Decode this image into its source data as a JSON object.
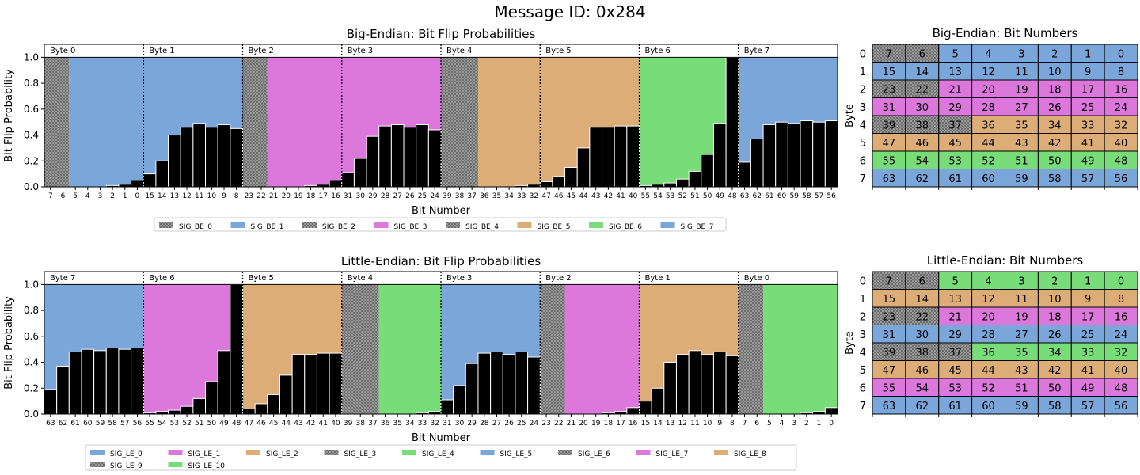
{
  "title": "Message ID: 0x284",
  "colors": {
    "blue": "#7aa6da",
    "pink": "#dc78dc",
    "tan": "#ddad78",
    "green": "#78dc78",
    "gray": "#9a9a9a",
    "bar": "#000000"
  },
  "chart_data": [
    {
      "type": "bar",
      "title": "Big-Endian: Bit Flip Probabilities",
      "xlabel": "Bit Number",
      "ylabel": "Bit Flip Probability",
      "ylim": [
        0,
        1.1
      ],
      "yticks": [
        "0.0",
        "0.2",
        "0.4",
        "0.6",
        "0.8",
        "1.0"
      ],
      "bytes": [
        "Byte 0",
        "Byte 1",
        "Byte 2",
        "Byte 3",
        "Byte 4",
        "Byte 5",
        "Byte 6",
        "Byte 7"
      ],
      "categories": [
        "7",
        "6",
        "5",
        "4",
        "3",
        "2",
        "1",
        "0",
        "15",
        "14",
        "13",
        "12",
        "11",
        "10",
        "9",
        "8",
        "23",
        "22",
        "21",
        "20",
        "19",
        "18",
        "17",
        "16",
        "31",
        "30",
        "29",
        "28",
        "27",
        "26",
        "25",
        "24",
        "39",
        "38",
        "37",
        "36",
        "35",
        "34",
        "33",
        "32",
        "47",
        "46",
        "45",
        "44",
        "43",
        "42",
        "41",
        "40",
        "55",
        "54",
        "53",
        "52",
        "51",
        "50",
        "49",
        "48",
        "63",
        "62",
        "61",
        "60",
        "59",
        "58",
        "57",
        "56"
      ],
      "values": [
        0,
        0,
        0,
        0,
        0,
        0.01,
        0.02,
        0.05,
        0.1,
        0.2,
        0.4,
        0.46,
        0.49,
        0.46,
        0.48,
        0.45,
        0,
        0,
        0,
        0,
        0,
        0.01,
        0.02,
        0.05,
        0.11,
        0.22,
        0.39,
        0.47,
        0.48,
        0.46,
        0.48,
        0.44,
        0,
        0,
        0,
        0,
        0,
        0,
        0.01,
        0.02,
        0.04,
        0.08,
        0.15,
        0.3,
        0.46,
        0.46,
        0.47,
        0.47,
        0.01,
        0.02,
        0.03,
        0.06,
        0.12,
        0.25,
        0.49,
        1.0,
        0.19,
        0.37,
        0.48,
        0.5,
        0.49,
        0.51,
        0.5,
        0.51
      ],
      "signals": [
        {
          "name": "SIG_BE_0",
          "color": "gray",
          "patterned": true,
          "start": 0,
          "len": 2
        },
        {
          "name": "SIG_BE_1",
          "color": "blue",
          "patterned": false,
          "start": 2,
          "len": 14
        },
        {
          "name": "SIG_BE_2",
          "color": "gray",
          "patterned": true,
          "start": 16,
          "len": 2
        },
        {
          "name": "SIG_BE_3",
          "color": "pink",
          "patterned": false,
          "start": 18,
          "len": 14
        },
        {
          "name": "SIG_BE_4",
          "color": "gray",
          "patterned": true,
          "start": 32,
          "len": 3
        },
        {
          "name": "SIG_BE_5",
          "color": "tan",
          "patterned": false,
          "start": 35,
          "len": 13
        },
        {
          "name": "SIG_BE_6",
          "color": "green",
          "patterned": false,
          "start": 48,
          "len": 8
        },
        {
          "name": "SIG_BE_7",
          "color": "blue",
          "patterned": false,
          "start": 56,
          "len": 8
        }
      ]
    },
    {
      "type": "bar",
      "title": "Little-Endian: Bit Flip Probabilities",
      "xlabel": "Bit Number",
      "ylabel": "Bit Flip Probability",
      "ylim": [
        0,
        1.1
      ],
      "yticks": [
        "0.0",
        "0.2",
        "0.4",
        "0.6",
        "0.8",
        "1.0"
      ],
      "bytes": [
        "Byte 7",
        "Byte 6",
        "Byte 5",
        "Byte 4",
        "Byte 3",
        "Byte 2",
        "Byte 1",
        "Byte 0"
      ],
      "categories": [
        "63",
        "62",
        "61",
        "60",
        "59",
        "58",
        "57",
        "56",
        "55",
        "54",
        "53",
        "52",
        "51",
        "50",
        "49",
        "48",
        "47",
        "46",
        "45",
        "44",
        "43",
        "42",
        "41",
        "40",
        "39",
        "38",
        "37",
        "36",
        "35",
        "34",
        "33",
        "32",
        "31",
        "30",
        "29",
        "28",
        "27",
        "26",
        "25",
        "24",
        "23",
        "22",
        "21",
        "20",
        "19",
        "18",
        "17",
        "16",
        "15",
        "14",
        "13",
        "12",
        "11",
        "10",
        "9",
        "8",
        "7",
        "6",
        "5",
        "4",
        "3",
        "2",
        "1",
        "0"
      ],
      "values": [
        0.19,
        0.37,
        0.48,
        0.5,
        0.49,
        0.51,
        0.5,
        0.51,
        0.01,
        0.02,
        0.03,
        0.06,
        0.12,
        0.25,
        0.49,
        1.0,
        0.04,
        0.08,
        0.15,
        0.3,
        0.46,
        0.46,
        0.47,
        0.47,
        0,
        0,
        0,
        0,
        0,
        0,
        0.01,
        0.02,
        0.11,
        0.22,
        0.39,
        0.47,
        0.48,
        0.46,
        0.48,
        0.44,
        0,
        0,
        0,
        0,
        0,
        0.01,
        0.02,
        0.05,
        0.1,
        0.2,
        0.4,
        0.46,
        0.49,
        0.46,
        0.48,
        0.45,
        0,
        0,
        0,
        0,
        0,
        0.01,
        0.02,
        0.05
      ],
      "signals": [
        {
          "name": "SIG_LE_0",
          "color": "blue",
          "patterned": false,
          "start": 0,
          "len": 8
        },
        {
          "name": "SIG_LE_1",
          "color": "pink",
          "patterned": false,
          "start": 8,
          "len": 8
        },
        {
          "name": "SIG_LE_2",
          "color": "tan",
          "patterned": false,
          "start": 16,
          "len": 8
        },
        {
          "name": "SIG_LE_3",
          "color": "gray",
          "patterned": true,
          "start": 24,
          "len": 3
        },
        {
          "name": "SIG_LE_4",
          "color": "green",
          "patterned": false,
          "start": 27,
          "len": 5
        },
        {
          "name": "SIG_LE_5",
          "color": "blue",
          "patterned": false,
          "start": 32,
          "len": 8
        },
        {
          "name": "SIG_LE_6",
          "color": "gray",
          "patterned": true,
          "start": 40,
          "len": 2
        },
        {
          "name": "SIG_LE_7",
          "color": "pink",
          "patterned": false,
          "start": 42,
          "len": 6
        },
        {
          "name": "SIG_LE_8",
          "color": "tan",
          "patterned": false,
          "start": 48,
          "len": 8
        },
        {
          "name": "SIG_LE_9",
          "color": "gray",
          "patterned": true,
          "start": 56,
          "len": 2
        },
        {
          "name": "SIG_LE_10",
          "color": "green",
          "patterned": false,
          "start": 58,
          "len": 6
        }
      ]
    },
    {
      "type": "table",
      "title": "Big-Endian: Bit Numbers",
      "ylabel": "Byte",
      "row_labels": [
        "0",
        "1",
        "2",
        "3",
        "4",
        "5",
        "6",
        "7"
      ],
      "rows": [
        [
          "7",
          "6",
          "5",
          "4",
          "3",
          "2",
          "1",
          "0"
        ],
        [
          "15",
          "14",
          "13",
          "12",
          "11",
          "10",
          "9",
          "8"
        ],
        [
          "23",
          "22",
          "21",
          "20",
          "19",
          "18",
          "17",
          "16"
        ],
        [
          "31",
          "30",
          "29",
          "28",
          "27",
          "26",
          "25",
          "24"
        ],
        [
          "39",
          "38",
          "37",
          "36",
          "35",
          "34",
          "33",
          "32"
        ],
        [
          "47",
          "46",
          "45",
          "44",
          "43",
          "42",
          "41",
          "40"
        ],
        [
          "55",
          "54",
          "53",
          "52",
          "51",
          "50",
          "49",
          "48"
        ],
        [
          "63",
          "62",
          "61",
          "60",
          "59",
          "58",
          "57",
          "56"
        ]
      ],
      "cell_colors": [
        [
          "gray",
          "gray",
          "blue",
          "blue",
          "blue",
          "blue",
          "blue",
          "blue"
        ],
        [
          "blue",
          "blue",
          "blue",
          "blue",
          "blue",
          "blue",
          "blue",
          "blue"
        ],
        [
          "gray",
          "gray",
          "pink",
          "pink",
          "pink",
          "pink",
          "pink",
          "pink"
        ],
        [
          "pink",
          "pink",
          "pink",
          "pink",
          "pink",
          "pink",
          "pink",
          "pink"
        ],
        [
          "gray",
          "gray",
          "gray",
          "tan",
          "tan",
          "tan",
          "tan",
          "tan"
        ],
        [
          "tan",
          "tan",
          "tan",
          "tan",
          "tan",
          "tan",
          "tan",
          "tan"
        ],
        [
          "green",
          "green",
          "green",
          "green",
          "green",
          "green",
          "green",
          "green"
        ],
        [
          "blue",
          "blue",
          "blue",
          "blue",
          "blue",
          "blue",
          "blue",
          "blue"
        ]
      ]
    },
    {
      "type": "table",
      "title": "Little-Endian: Bit Numbers",
      "ylabel": "Byte",
      "row_labels": [
        "0",
        "1",
        "2",
        "3",
        "4",
        "5",
        "6",
        "7"
      ],
      "rows": [
        [
          "7",
          "6",
          "5",
          "4",
          "3",
          "2",
          "1",
          "0"
        ],
        [
          "15",
          "14",
          "13",
          "12",
          "11",
          "10",
          "9",
          "8"
        ],
        [
          "23",
          "22",
          "21",
          "20",
          "19",
          "18",
          "17",
          "16"
        ],
        [
          "31",
          "30",
          "29",
          "28",
          "27",
          "26",
          "25",
          "24"
        ],
        [
          "39",
          "38",
          "37",
          "36",
          "35",
          "34",
          "33",
          "32"
        ],
        [
          "47",
          "46",
          "45",
          "44",
          "43",
          "42",
          "41",
          "40"
        ],
        [
          "55",
          "54",
          "53",
          "52",
          "51",
          "50",
          "49",
          "48"
        ],
        [
          "63",
          "62",
          "61",
          "60",
          "59",
          "58",
          "57",
          "56"
        ]
      ],
      "cell_colors": [
        [
          "gray",
          "gray",
          "green",
          "green",
          "green",
          "green",
          "green",
          "green"
        ],
        [
          "tan",
          "tan",
          "tan",
          "tan",
          "tan",
          "tan",
          "tan",
          "tan"
        ],
        [
          "gray",
          "gray",
          "pink",
          "pink",
          "pink",
          "pink",
          "pink",
          "pink"
        ],
        [
          "blue",
          "blue",
          "blue",
          "blue",
          "blue",
          "blue",
          "blue",
          "blue"
        ],
        [
          "gray",
          "gray",
          "gray",
          "green",
          "green",
          "green",
          "green",
          "green"
        ],
        [
          "tan",
          "tan",
          "tan",
          "tan",
          "tan",
          "tan",
          "tan",
          "tan"
        ],
        [
          "pink",
          "pink",
          "pink",
          "pink",
          "pink",
          "pink",
          "pink",
          "pink"
        ],
        [
          "blue",
          "blue",
          "blue",
          "blue",
          "blue",
          "blue",
          "blue",
          "blue"
        ]
      ]
    }
  ]
}
